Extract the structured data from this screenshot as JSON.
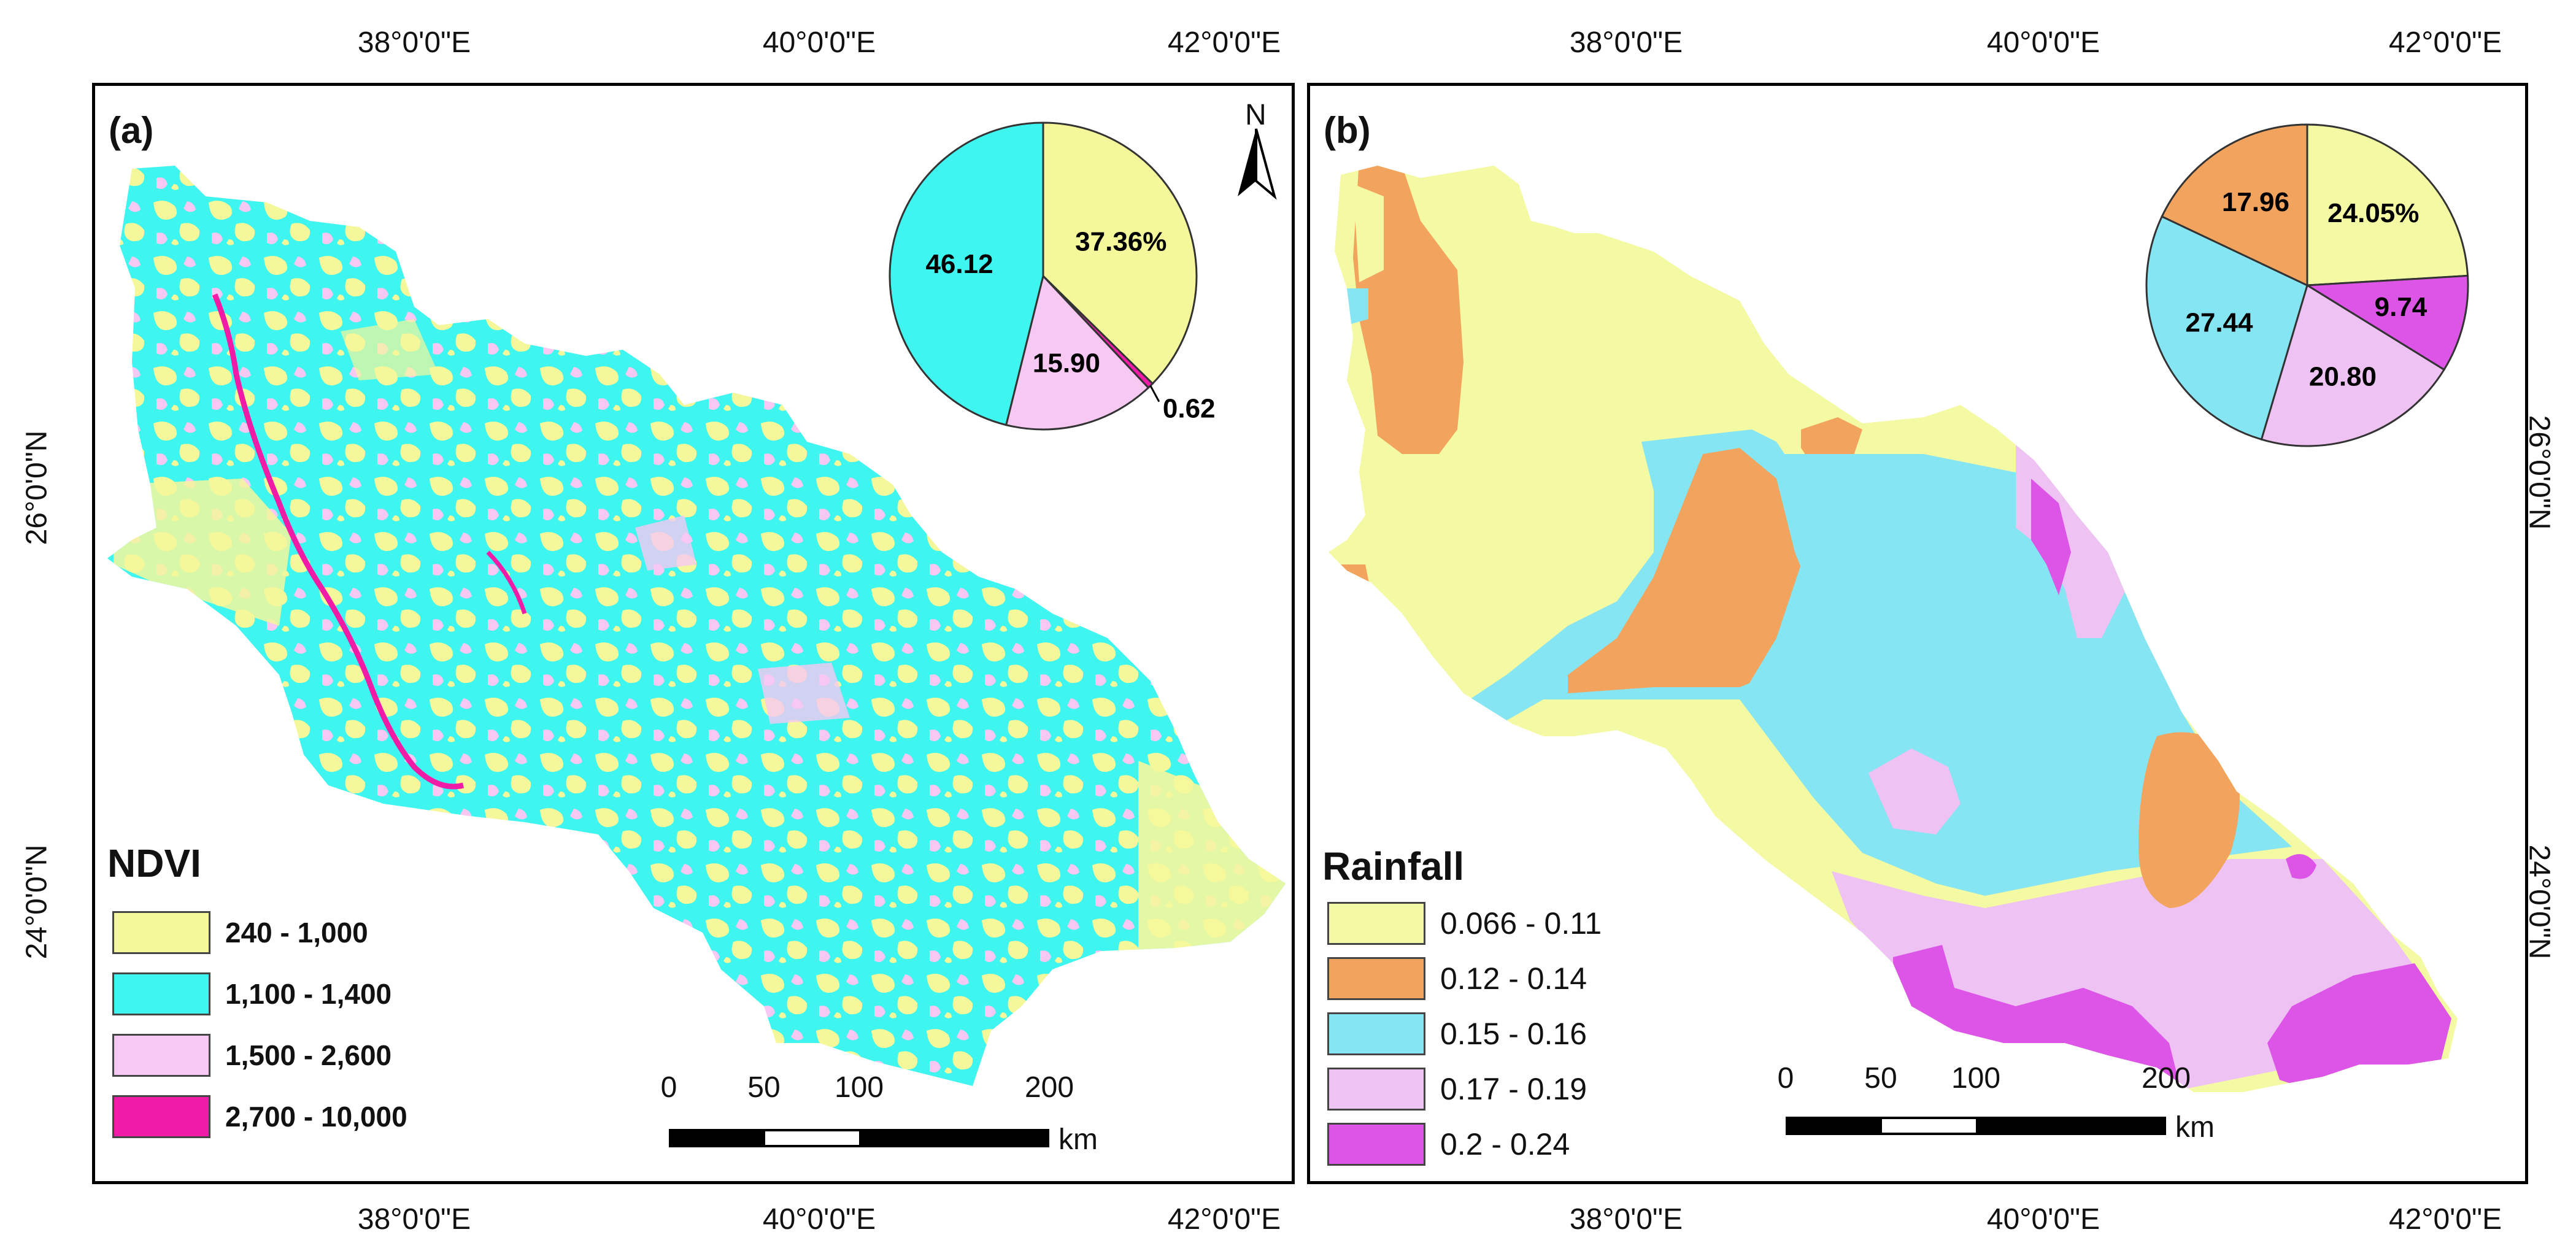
{
  "lon_ticks": [
    "38°0'0\"E",
    "40°0'0\"E",
    "42°0'0\"E"
  ],
  "lat_ticks": [
    "26°0'0\"N",
    "24°0'0\"N"
  ],
  "panel_a": {
    "label": "(a)",
    "north": "N",
    "legend_title": "NDVI",
    "legend": [
      {
        "label": "240 - 1,000",
        "color": "#f5f79b"
      },
      {
        "label": "1,100 - 1,400",
        "color": "#3ff5ef"
      },
      {
        "label": "1,500 - 2,600",
        "color": "#f6c8f2"
      },
      {
        "label": "2,700 - 10,000",
        "color": "#f01ca8"
      }
    ],
    "pie": [
      {
        "label": "37.36%",
        "value": 37.36,
        "color": "#f5f79b"
      },
      {
        "label": "0.62",
        "value": 0.62,
        "color": "#f01ca8"
      },
      {
        "label": "15.90",
        "value": 15.9,
        "color": "#f6c8f2"
      },
      {
        "label": "46.12",
        "value": 46.12,
        "color": "#3ff5ef"
      }
    ],
    "scale": {
      "ticks": [
        "0",
        "50",
        "100",
        "200"
      ],
      "unit": "km"
    }
  },
  "panel_b": {
    "label": "(b)",
    "legend_title": "Rainfall",
    "legend": [
      {
        "label": "0.066 - 0.11",
        "color": "#f4f9a3"
      },
      {
        "label": "0.12 - 0.14",
        "color": "#f2a45e"
      },
      {
        "label": "0.15 - 0.16",
        "color": "#86e5f2"
      },
      {
        "label": "0.17 - 0.19",
        "color": "#eec2f2"
      },
      {
        "label": "0.2 - 0.24",
        "color": "#dd55e6"
      }
    ],
    "pie": [
      {
        "label": "24.05%",
        "value": 24.05,
        "color": "#f4f9a3"
      },
      {
        "label": "9.74",
        "value": 9.74,
        "color": "#dd55e6"
      },
      {
        "label": "20.80",
        "value": 20.8,
        "color": "#eec2f2"
      },
      {
        "label": "27.44",
        "value": 27.44,
        "color": "#86e5f2"
      },
      {
        "label": "17.96",
        "value": 17.96,
        "color": "#f2a45e"
      }
    ],
    "scale": {
      "ticks": [
        "0",
        "50",
        "100",
        "200"
      ],
      "unit": "km"
    }
  }
}
